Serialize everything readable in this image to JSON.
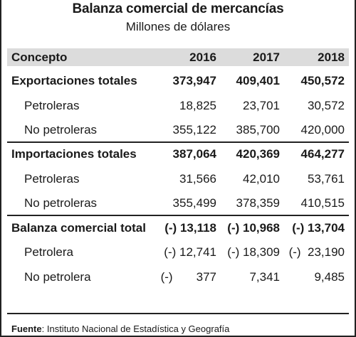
{
  "title": "Balanza comercial de mercancías",
  "subtitle": "Millones de dólares",
  "header": {
    "concept": "Concepto",
    "years": [
      "2016",
      "2017",
      "2018"
    ]
  },
  "rows": [
    {
      "label": "Exportaciones totales",
      "values": [
        "373,947",
        "409,401",
        "450,572"
      ],
      "bold": true
    },
    {
      "label": "Petroleras",
      "values": [
        "18,825",
        "23,701",
        "30,572"
      ],
      "bold": false
    },
    {
      "label": "No petroleras",
      "values": [
        "355,122",
        "385,700",
        "420,000"
      ],
      "bold": false
    },
    {
      "label": "Importaciones totales",
      "values": [
        "387,064",
        "420,369",
        "464,277"
      ],
      "bold": true
    },
    {
      "label": "Petroleras",
      "values": [
        "31,566",
        "42,010",
        "53,761"
      ],
      "bold": false
    },
    {
      "label": "No petroleras",
      "values": [
        "355,499",
        "378,359",
        "410,515"
      ],
      "bold": false
    },
    {
      "label": "Balanza comercial total",
      "values": [
        "(-) 13,118",
        "(-) 10,968",
        "(-) 13,704"
      ],
      "bold": true
    },
    {
      "label": "Petrolera",
      "values": [
        "(-) 12,741",
        "(-) 18,309",
        "(-)  23,190"
      ],
      "bold": false
    },
    {
      "label": "No petrolera",
      "values": [
        "(-)       377",
        "7,341",
        "9,485"
      ],
      "bold": false
    }
  ],
  "source": {
    "label": "Fuente",
    "text": ": Instituto Nacional de Estadística y Geografía"
  }
}
